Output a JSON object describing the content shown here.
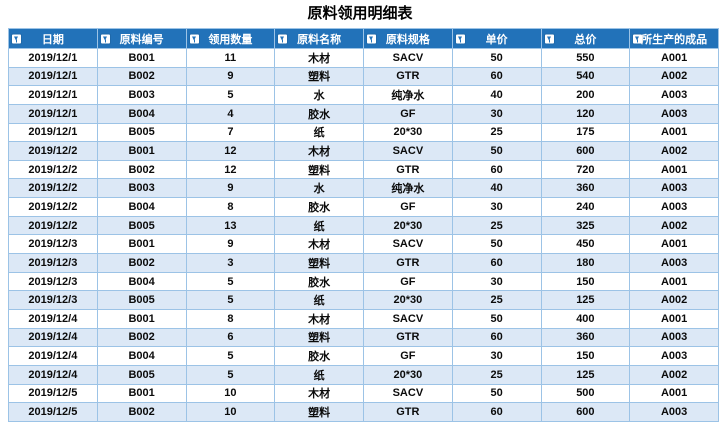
{
  "title": "原料领用明细表",
  "colors": {
    "header_bg": "#2272B9",
    "stripe": "#DCE8F6",
    "border": "#9CC3E6"
  },
  "icons": {
    "header_filter": "filter-funnel-icon"
  },
  "table": {
    "columns": [
      "日期",
      "原料编号",
      "领用数量",
      "原料名称",
      "原料规格",
      "单价",
      "总价",
      "所生产的成品"
    ],
    "rows": [
      [
        "2019/12/1",
        "B001",
        "11",
        "木材",
        "SACV",
        "50",
        "550",
        "A001"
      ],
      [
        "2019/12/1",
        "B002",
        "9",
        "塑料",
        "GTR",
        "60",
        "540",
        "A002"
      ],
      [
        "2019/12/1",
        "B003",
        "5",
        "水",
        "纯净水",
        "40",
        "200",
        "A003"
      ],
      [
        "2019/12/1",
        "B004",
        "4",
        "胶水",
        "GF",
        "30",
        "120",
        "A003"
      ],
      [
        "2019/12/1",
        "B005",
        "7",
        "纸",
        "20*30",
        "25",
        "175",
        "A001"
      ],
      [
        "2019/12/2",
        "B001",
        "12",
        "木材",
        "SACV",
        "50",
        "600",
        "A002"
      ],
      [
        "2019/12/2",
        "B002",
        "12",
        "塑料",
        "GTR",
        "60",
        "720",
        "A001"
      ],
      [
        "2019/12/2",
        "B003",
        "9",
        "水",
        "纯净水",
        "40",
        "360",
        "A003"
      ],
      [
        "2019/12/2",
        "B004",
        "8",
        "胶水",
        "GF",
        "30",
        "240",
        "A003"
      ],
      [
        "2019/12/2",
        "B005",
        "13",
        "纸",
        "20*30",
        "25",
        "325",
        "A002"
      ],
      [
        "2019/12/3",
        "B001",
        "9",
        "木材",
        "SACV",
        "50",
        "450",
        "A001"
      ],
      [
        "2019/12/3",
        "B002",
        "3",
        "塑料",
        "GTR",
        "60",
        "180",
        "A003"
      ],
      [
        "2019/12/3",
        "B004",
        "5",
        "胶水",
        "GF",
        "30",
        "150",
        "A001"
      ],
      [
        "2019/12/3",
        "B005",
        "5",
        "纸",
        "20*30",
        "25",
        "125",
        "A002"
      ],
      [
        "2019/12/4",
        "B001",
        "8",
        "木材",
        "SACV",
        "50",
        "400",
        "A001"
      ],
      [
        "2019/12/4",
        "B002",
        "6",
        "塑料",
        "GTR",
        "60",
        "360",
        "A003"
      ],
      [
        "2019/12/4",
        "B004",
        "5",
        "胶水",
        "GF",
        "30",
        "150",
        "A003"
      ],
      [
        "2019/12/4",
        "B005",
        "5",
        "纸",
        "20*30",
        "25",
        "125",
        "A002"
      ],
      [
        "2019/12/5",
        "B001",
        "10",
        "木材",
        "SACV",
        "50",
        "500",
        "A001"
      ],
      [
        "2019/12/5",
        "B002",
        "10",
        "塑料",
        "GTR",
        "60",
        "600",
        "A003"
      ]
    ]
  }
}
